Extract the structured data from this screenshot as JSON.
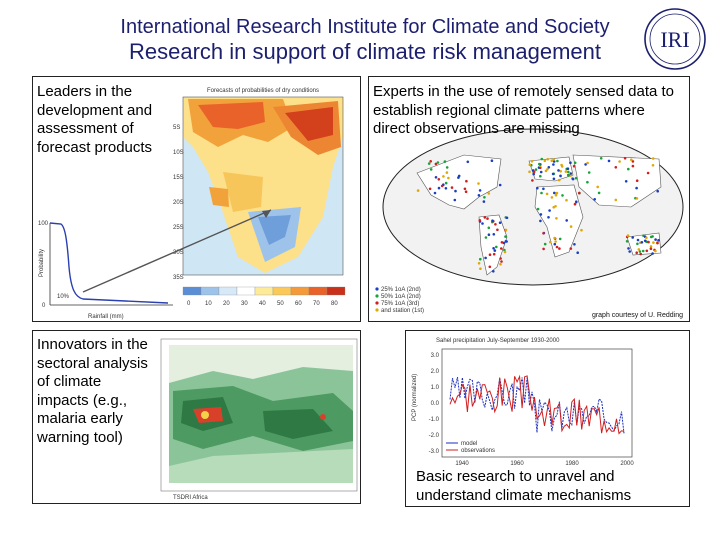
{
  "header": {
    "title": "International Research Institute for Climate and Society",
    "subtitle": "Research in support of climate risk management",
    "logo_text": "IRI"
  },
  "panels": {
    "forecast": {
      "text": "Leaders in the development and assessment of forecast products",
      "map_title": "Forecasts of probabilities of dry conditions",
      "y_label": "Probability",
      "x_label": "Rainfall (mm)",
      "tick_100": "100",
      "tick_0": "0",
      "pct_label": "10%",
      "lat_ticks": [
        "5S",
        "10S",
        "15S",
        "20S",
        "25S",
        "30S",
        "35S"
      ],
      "colorbar_ticks": [
        "0",
        "10",
        "20",
        "30",
        "40",
        "50",
        "60",
        "70",
        "80"
      ]
    },
    "remote": {
      "text": "Experts in the use of remotely sensed data to establish regional climate patterns where direct observations are missing",
      "credit": "graph courtesy of U. Redding",
      "legend": [
        {
          "label": "25% 1oA (2nd)",
          "color": "#1a3fbf"
        },
        {
          "label": "50% 1oA (2nd)",
          "color": "#16a33a"
        },
        {
          "label": "75% 1oA (3rd)",
          "color": "#d11f1f"
        },
        {
          "label": "and station (1st)",
          "color": "#e0a800"
        }
      ]
    },
    "sectoral": {
      "text": "Innovators in the sectoral analysis of climate impacts (e.g., malaria early warning tool)",
      "source": "TSDRI Africa"
    },
    "sahel": {
      "title": "Sahel precipitation   July-September 1930-2000",
      "ylabel": "PCP (normalized)",
      "yticks": [
        "3.0",
        "2.0",
        "1.0",
        "0.0",
        "-1.0",
        "-2.0",
        "-3.0"
      ],
      "xticks": [
        "1940",
        "1960",
        "1980",
        "2000"
      ],
      "legend": [
        {
          "name": "model",
          "color": "#1a2fbf"
        },
        {
          "name": "observations",
          "color": "#d11f1f"
        }
      ],
      "text": "Basic research to unravel and understand climate mechanisms"
    }
  },
  "colors": {
    "title": "#1b1f6e",
    "dry": "#e8622a",
    "wet": "#4a7fd0",
    "arrow": "#555555"
  }
}
